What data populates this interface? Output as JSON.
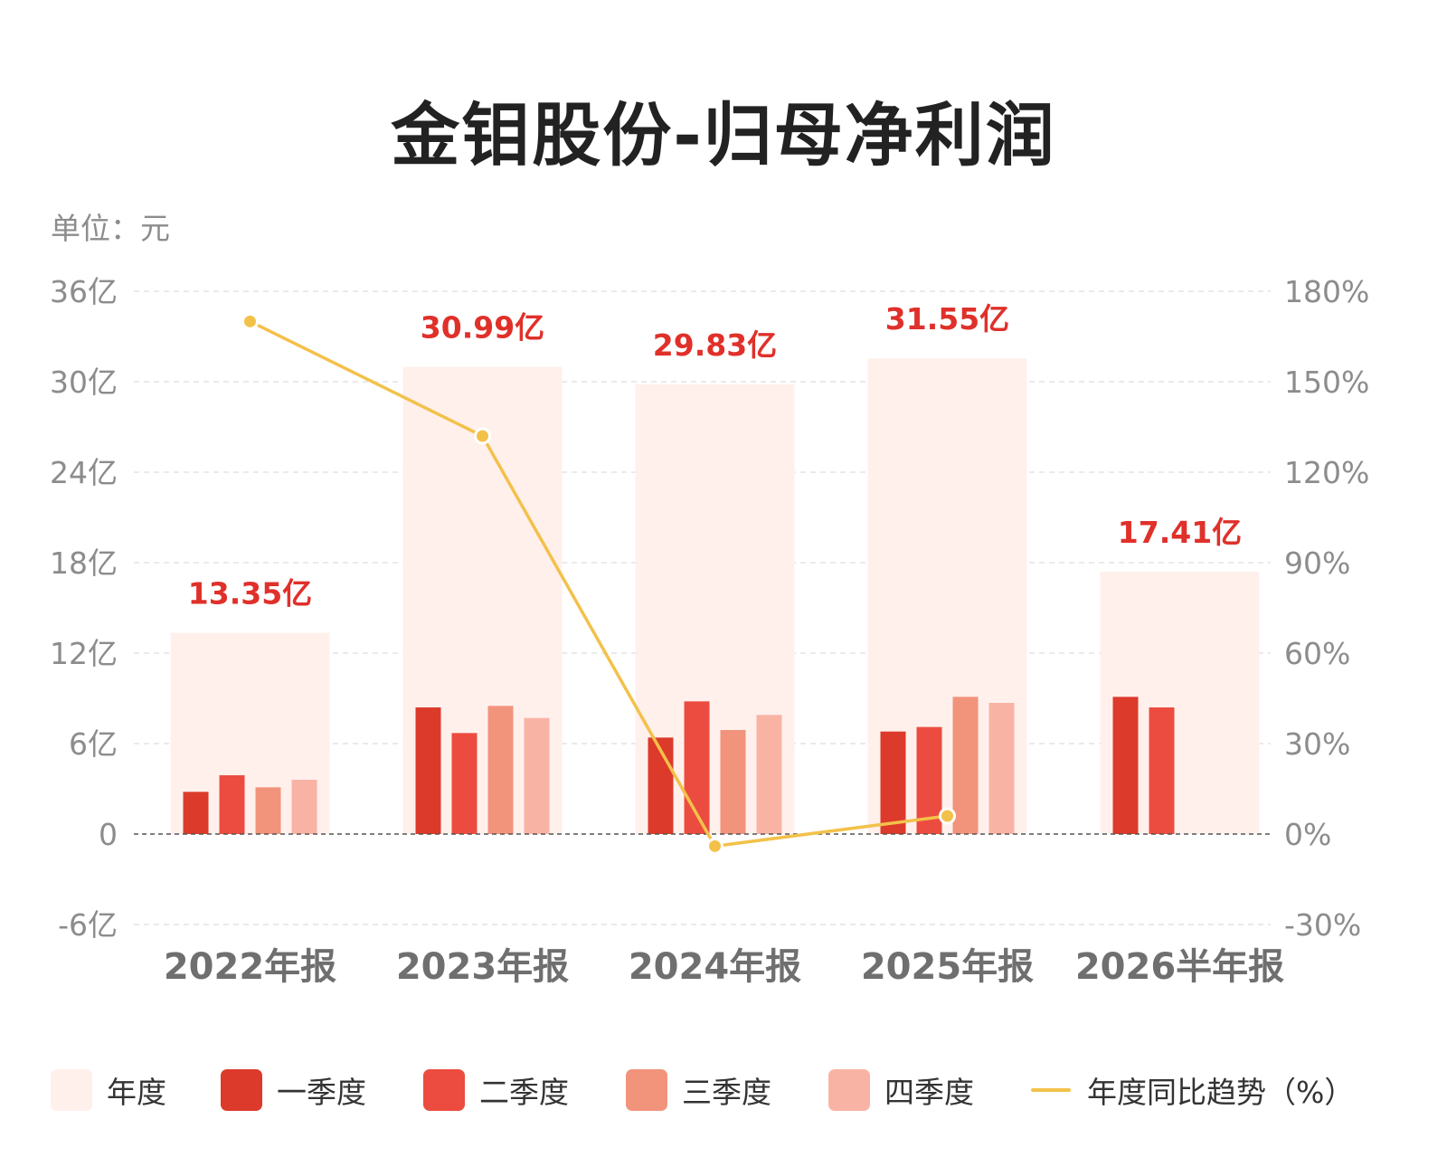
{
  "title": "金钼股份-归母净利润",
  "unit_label": "单位：元",
  "legend": [
    {
      "key": "annual",
      "label": "年度",
      "color": "#fff0ec"
    },
    {
      "key": "q1",
      "label": "一季度",
      "color": "#dc3a2a"
    },
    {
      "key": "q2",
      "label": "二季度",
      "color": "#ec4c3f"
    },
    {
      "key": "q3",
      "label": "三季度",
      "color": "#f2937c"
    },
    {
      "key": "q4",
      "label": "四季度",
      "color": "#f9b3a4"
    },
    {
      "key": "yoy",
      "label": "年度同比趋势（%）",
      "color": "#f3c14a"
    }
  ],
  "chart_data": {
    "type": "bar",
    "categories": [
      "2022年报",
      "2023年报",
      "2024年报",
      "2025年报",
      "2026半年报"
    ],
    "y_left": {
      "ticks": [
        "36亿",
        "30亿",
        "24亿",
        "18亿",
        "12亿",
        "6亿",
        "0",
        "-6亿"
      ],
      "min": -6,
      "max": 36,
      "step": 6
    },
    "y_right": {
      "ticks": [
        "180%",
        "150%",
        "120%",
        "90%",
        "60%",
        "30%",
        "0%",
        "-30%"
      ],
      "min": -30,
      "max": 180,
      "step": 30
    },
    "annual": {
      "values": [
        13.35,
        30.99,
        29.83,
        31.55,
        17.41
      ],
      "labels": [
        "13.35亿",
        "30.99亿",
        "29.83亿",
        "31.55亿",
        "17.41亿"
      ]
    },
    "series": [
      {
        "name": "一季度",
        "values": [
          2.8,
          8.4,
          6.4,
          6.8,
          9.1
        ]
      },
      {
        "name": "二季度",
        "values": [
          3.9,
          6.7,
          8.8,
          7.1,
          8.4
        ]
      },
      {
        "name": "三季度",
        "values": [
          3.1,
          8.5,
          6.9,
          9.1,
          null
        ]
      },
      {
        "name": "四季度",
        "values": [
          3.6,
          7.7,
          7.9,
          8.7,
          null
        ]
      }
    ],
    "yoy_percent": {
      "name": "年度同比趋势（%）",
      "values": [
        170,
        132,
        -4,
        6,
        null
      ]
    },
    "grid": true,
    "legend_position": "bottom"
  }
}
